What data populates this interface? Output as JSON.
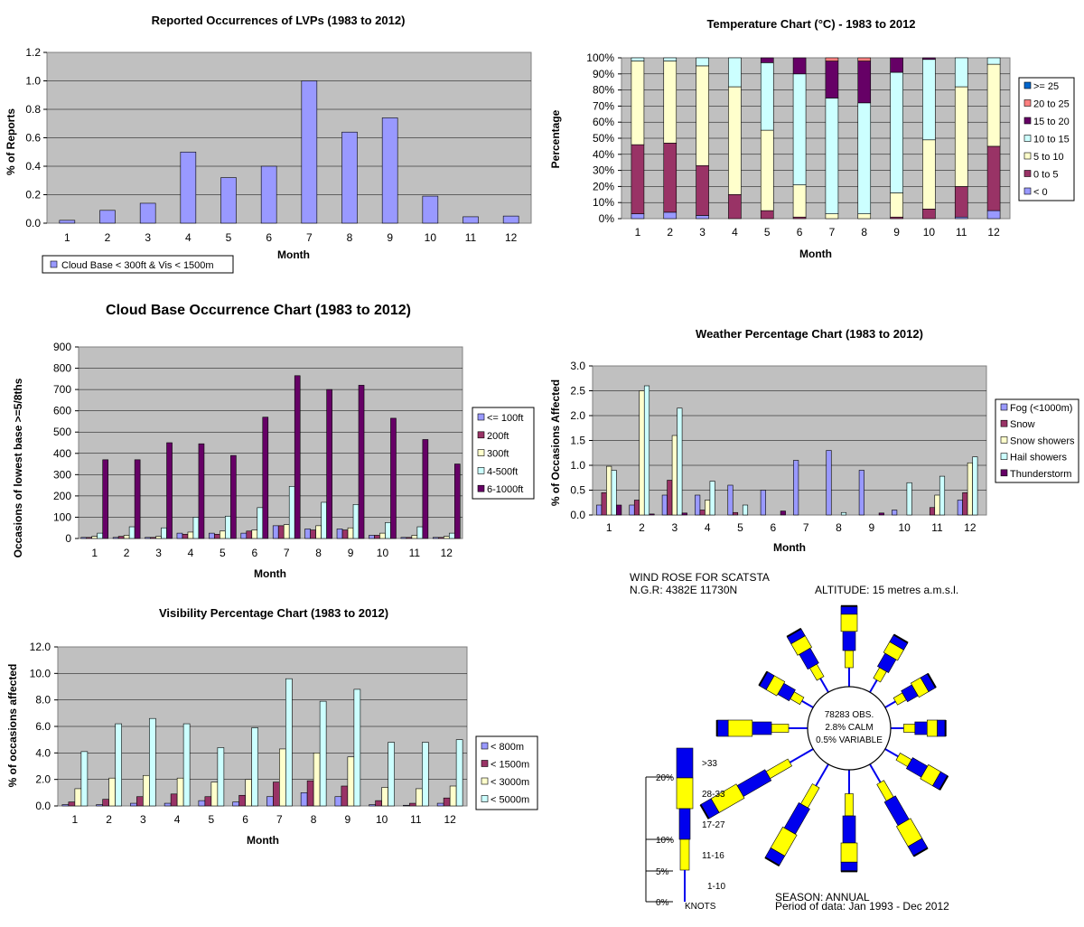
{
  "colors": {
    "plot_bg": "#c0c0c0",
    "bar_blue": "#9999ff",
    "bar_plum": "#993366",
    "bar_cream": "#ffffcc",
    "bar_cyan": "#ccffff",
    "bar_purple": "#660066",
    "bar_salmon": "#ff8080",
    "bar_navy": "#0066cc",
    "rose_blue": "#0000ee",
    "rose_yellow": "#ffff00"
  },
  "chart_data": [
    {
      "id": "lvp",
      "type": "bar",
      "title": "Reported Occurrences of LVPs (1983 to 2012)",
      "xlabel": "Month",
      "ylabel": "% of Reports",
      "categories": [
        "1",
        "2",
        "3",
        "4",
        "5",
        "6",
        "7",
        "8",
        "9",
        "10",
        "11",
        "12"
      ],
      "ylim": [
        0,
        1.2
      ],
      "yticks": [
        "0.0",
        "0.2",
        "0.4",
        "0.6",
        "0.8",
        "1.0",
        "1.2"
      ],
      "grid": true,
      "legend_position": "bottom-left",
      "series": [
        {
          "name": "Cloud Base < 300ft & Vis < 1500m",
          "color": "#9999ff",
          "values": [
            0.02,
            0.09,
            0.14,
            0.5,
            0.32,
            0.4,
            1.0,
            0.64,
            0.74,
            0.19,
            0.045,
            0.05
          ]
        }
      ]
    },
    {
      "id": "temp",
      "type": "bar",
      "stacked": true,
      "title": "Temperature Chart (°C) - 1983 to 2012",
      "xlabel": "Month",
      "ylabel": "Percentage",
      "categories": [
        "1",
        "2",
        "3",
        "4",
        "5",
        "6",
        "7",
        "8",
        "9",
        "10",
        "11",
        "12"
      ],
      "ylim": [
        0,
        100
      ],
      "yticks": [
        "0%",
        "10%",
        "20%",
        "30%",
        "40%",
        "50%",
        "60%",
        "70%",
        "80%",
        "90%",
        "100%"
      ],
      "grid": true,
      "legend_position": "right",
      "series": [
        {
          "name": "< 0",
          "color": "#9999ff",
          "values": [
            3,
            4,
            2,
            0,
            0,
            0,
            0,
            0,
            0,
            0,
            1,
            5
          ]
        },
        {
          "name": "0 to 5",
          "color": "#993366",
          "values": [
            43,
            43,
            31,
            15,
            5,
            1,
            0,
            0,
            1,
            6,
            19,
            40
          ]
        },
        {
          "name": "5 to 10",
          "color": "#ffffcc",
          "values": [
            52,
            51,
            62,
            67,
            50,
            20,
            3,
            3,
            15,
            43,
            62,
            51
          ]
        },
        {
          "name": "10 to 15",
          "color": "#ccffff",
          "values": [
            2,
            2,
            5,
            18,
            42,
            69,
            72,
            69,
            75,
            50,
            18,
            4
          ]
        },
        {
          "name": "15 to 20",
          "color": "#660066",
          "values": [
            0,
            0,
            0,
            0,
            3,
            10,
            23,
            26,
            9,
            1,
            0,
            0
          ]
        },
        {
          "name": "20 to 25",
          "color": "#ff8080",
          "values": [
            0,
            0,
            0,
            0,
            0,
            0,
            2,
            2,
            0,
            0,
            0,
            0
          ]
        },
        {
          "name": ">= 25",
          "color": "#0066cc",
          "values": [
            0,
            0,
            0,
            0,
            0,
            0,
            0,
            0,
            0,
            0,
            0,
            0
          ]
        }
      ]
    },
    {
      "id": "cloud",
      "type": "bar",
      "title": "Cloud Base Occurrence Chart (1983 to 2012)",
      "xlabel": "Month",
      "ylabel": "Occasions of lowest base >=5/8ths",
      "categories": [
        "1",
        "2",
        "3",
        "4",
        "5",
        "6",
        "7",
        "8",
        "9",
        "10",
        "11",
        "12"
      ],
      "ylim": [
        0,
        900
      ],
      "yticks": [
        "0",
        "100",
        "200",
        "300",
        "400",
        "500",
        "600",
        "700",
        "800",
        "900"
      ],
      "grid": true,
      "legend_position": "right",
      "series": [
        {
          "name": "<= 100ft",
          "color": "#9999ff",
          "values": [
            5,
            5,
            5,
            25,
            25,
            25,
            60,
            45,
            45,
            15,
            5,
            5
          ]
        },
        {
          "name": "200ft",
          "color": "#993366",
          "values": [
            5,
            10,
            5,
            20,
            20,
            35,
            60,
            40,
            40,
            15,
            5,
            5
          ]
        },
        {
          "name": "300ft",
          "color": "#ffffcc",
          "values": [
            10,
            15,
            10,
            30,
            35,
            40,
            65,
            60,
            50,
            25,
            15,
            10
          ]
        },
        {
          "name": "4-500ft",
          "color": "#ccffff",
          "values": [
            25,
            55,
            50,
            100,
            105,
            145,
            245,
            170,
            160,
            75,
            55,
            25
          ]
        },
        {
          "name": "6-1000ft",
          "color": "#660066",
          "values": [
            370,
            370,
            450,
            445,
            390,
            570,
            765,
            700,
            720,
            565,
            465,
            350
          ]
        }
      ]
    },
    {
      "id": "weather",
      "type": "bar",
      "title": "Weather Percentage Chart (1983 to 2012)",
      "xlabel": "Month",
      "ylabel": "% of Occasions Affected",
      "categories": [
        "1",
        "2",
        "3",
        "4",
        "5",
        "6",
        "7",
        "8",
        "9",
        "10",
        "11",
        "12"
      ],
      "ylim": [
        0,
        3.0
      ],
      "yticks": [
        "0.0",
        "0.5",
        "1.0",
        "1.5",
        "2.0",
        "2.5",
        "3.0"
      ],
      "grid": true,
      "legend_position": "right",
      "series": [
        {
          "name": "Fog (<1000m)",
          "color": "#9999ff",
          "values": [
            0.2,
            0.2,
            0.4,
            0.4,
            0.6,
            0.5,
            1.1,
            1.3,
            0.9,
            0.1,
            0.0,
            0.3
          ]
        },
        {
          "name": "Snow",
          "color": "#993366",
          "values": [
            0.45,
            0.3,
            0.7,
            0.1,
            0.05,
            0.0,
            0.0,
            0.0,
            0.0,
            0.0,
            0.15,
            0.45
          ]
        },
        {
          "name": "Snow showers",
          "color": "#ffffcc",
          "values": [
            0.98,
            2.5,
            1.6,
            0.3,
            0.0,
            0.0,
            0.0,
            0.0,
            0.0,
            0.0,
            0.4,
            1.05
          ]
        },
        {
          "name": "Hail showers",
          "color": "#ccffff",
          "values": [
            0.9,
            2.6,
            2.15,
            0.68,
            0.2,
            0.0,
            0.0,
            0.05,
            0.0,
            0.65,
            0.78,
            1.17
          ]
        },
        {
          "name": "Thunderstorm",
          "color": "#660066",
          "values": [
            0.2,
            0.02,
            0.04,
            0.0,
            0.0,
            0.08,
            0.0,
            0.0,
            0.04,
            0.0,
            0.0,
            0.0
          ]
        }
      ]
    },
    {
      "id": "vis",
      "type": "bar",
      "title": "Visibility Percentage Chart (1983 to 2012)",
      "xlabel": "Month",
      "ylabel": "% of occasions affected",
      "categories": [
        "1",
        "2",
        "3",
        "4",
        "5",
        "6",
        "7",
        "8",
        "9",
        "10",
        "11",
        "12"
      ],
      "ylim": [
        0,
        12
      ],
      "yticks": [
        "0.0",
        "2.0",
        "4.0",
        "6.0",
        "8.0",
        "10.0",
        "12.0"
      ],
      "grid": true,
      "legend_position": "right",
      "series": [
        {
          "name": "< 800m",
          "color": "#9999ff",
          "values": [
            0.1,
            0.1,
            0.2,
            0.2,
            0.4,
            0.3,
            0.7,
            1.0,
            0.7,
            0.1,
            0.05,
            0.2
          ]
        },
        {
          "name": "< 1500m",
          "color": "#993366",
          "values": [
            0.3,
            0.5,
            0.7,
            0.9,
            0.7,
            0.8,
            1.8,
            1.9,
            1.5,
            0.4,
            0.2,
            0.6
          ]
        },
        {
          "name": "< 3000m",
          "color": "#ffffcc",
          "values": [
            1.3,
            2.1,
            2.3,
            2.1,
            1.8,
            2.0,
            4.3,
            4.0,
            3.7,
            1.4,
            1.3,
            1.5
          ]
        },
        {
          "name": "< 5000m",
          "color": "#ccffff",
          "values": [
            4.1,
            6.2,
            6.6,
            6.2,
            4.4,
            5.9,
            9.6,
            7.9,
            8.8,
            4.8,
            4.8,
            5.0
          ]
        }
      ]
    }
  ],
  "wind_rose": {
    "title": "WIND ROSE FOR SCATSTA",
    "ngr": "N.G.R: 4382E 11730N",
    "altitude": "ALTITUDE: 15 metres a.m.s.l.",
    "obs": "78283 OBS.",
    "calm": "2.8% CALM",
    "variable": "0.5% VARIABLE",
    "season": "SEASON:  ANNUAL",
    "period": "Period of data: Jan 1993 - Dec 2012",
    "scale_labels": [
      "20%",
      "10%",
      "5%",
      "0%"
    ],
    "key_labels": [
      ">33",
      "28-33",
      "17-27",
      "11-16",
      "1-10"
    ],
    "units": "KNOTS",
    "directions_deg": [
      0,
      30,
      60,
      90,
      120,
      150,
      180,
      210,
      240,
      270,
      300,
      330
    ],
    "bands": [
      [
        1.0,
        1.2,
        1.0,
        0.1
      ],
      [
        0.5,
        0.8,
        0.5,
        0.1
      ],
      [
        0.3,
        0.5,
        0.4,
        0.1
      ],
      [
        0.4,
        0.5,
        0.3,
        0.1
      ],
      [
        0.6,
        1.0,
        0.7,
        0.1
      ],
      [
        1.2,
        2.0,
        1.6,
        0.4
      ],
      [
        1.5,
        2.0,
        1.2,
        0.2
      ],
      [
        1.6,
        2.2,
        1.7,
        0.4
      ],
      [
        1.8,
        2.5,
        2.2,
        0.5
      ],
      [
        1.0,
        1.2,
        1.7,
        0.4
      ],
      [
        0.4,
        0.6,
        0.5,
        0.1
      ],
      [
        0.7,
        1.0,
        0.6,
        0.1
      ]
    ]
  }
}
